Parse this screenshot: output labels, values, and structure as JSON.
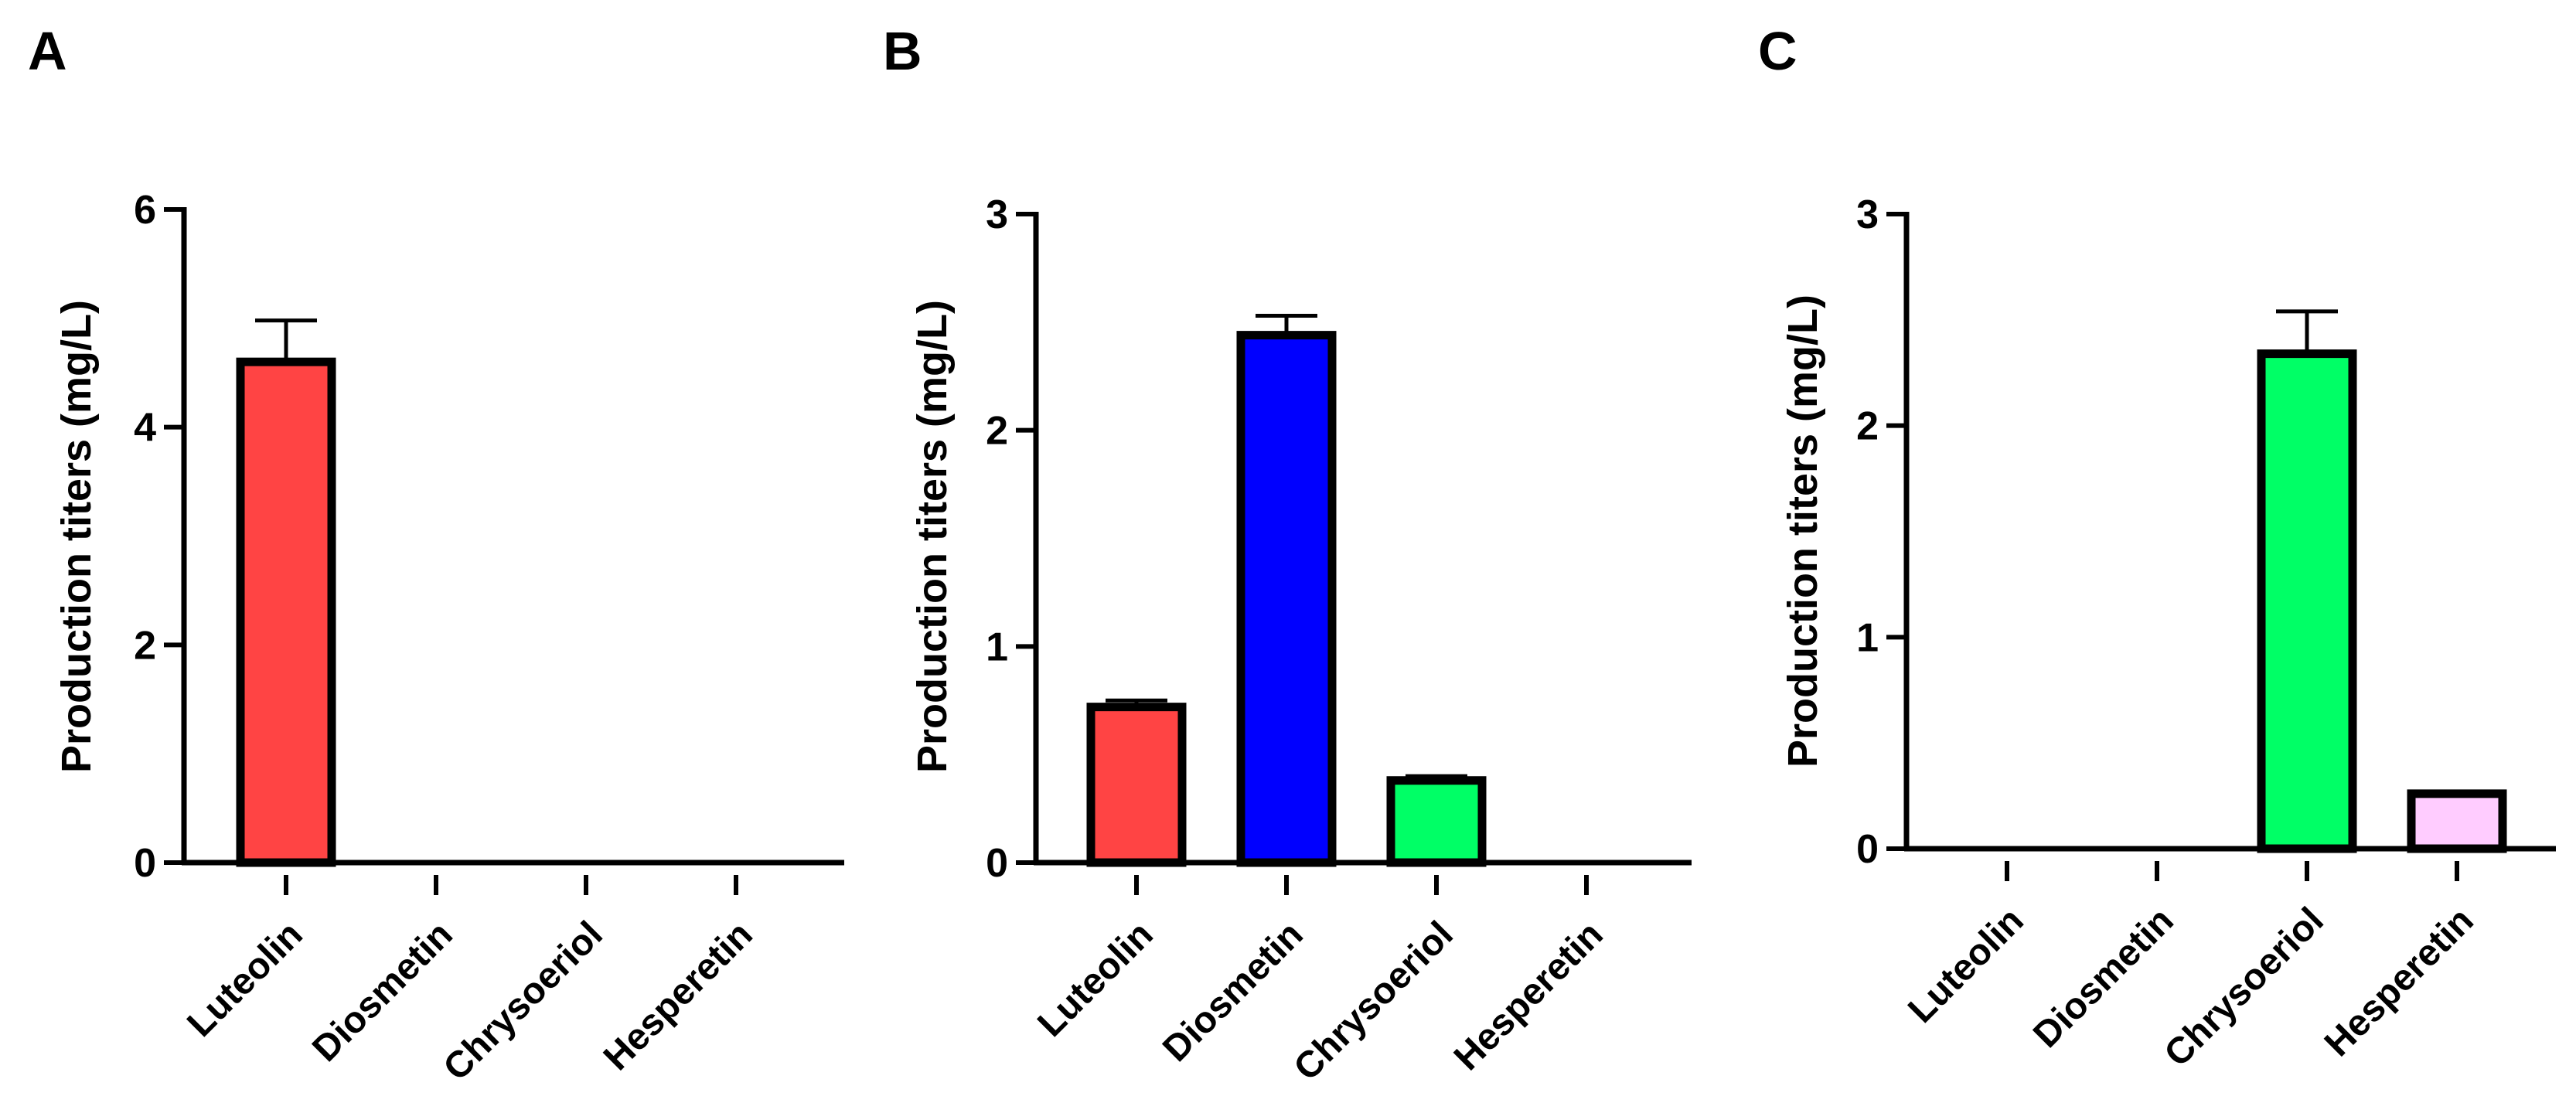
{
  "chart_data": [
    {
      "panel": "A",
      "type": "bar",
      "ylabel": "Production titers (mg/L)",
      "categories": [
        "Luteolin",
        "Diosmetin",
        "Chrysoeriol",
        "Hesperetin"
      ],
      "values": [
        4.6,
        0,
        0,
        0
      ],
      "errors": [
        0.38,
        0,
        0,
        0
      ],
      "colors": [
        "#ff4444",
        "#0000ff",
        "#00ff66",
        "#ffccff"
      ],
      "ylim": [
        0,
        6
      ],
      "yticks": [
        0,
        2,
        4,
        6
      ]
    },
    {
      "panel": "B",
      "type": "bar",
      "ylabel": "Production titers (mg/L)",
      "categories": [
        "Luteolin",
        "Diosmetin",
        "Chrysoeriol",
        "Hesperetin"
      ],
      "values": [
        0.72,
        2.44,
        0.38,
        0
      ],
      "errors": [
        0.03,
        0.09,
        0.02,
        0
      ],
      "colors": [
        "#ff4444",
        "#0000ff",
        "#00ff66",
        "#ffccff"
      ],
      "ylim": [
        0,
        3
      ],
      "yticks": [
        0,
        1,
        2,
        3
      ]
    },
    {
      "panel": "C",
      "type": "bar",
      "ylabel": "Production titers (mg/L)",
      "categories": [
        "Luteolin",
        "Diosmetin",
        "Chrysoeriol",
        "Hesperetin"
      ],
      "values": [
        0,
        0,
        2.34,
        0.26
      ],
      "errors": [
        0,
        0,
        0.2,
        0.01
      ],
      "colors": [
        "#ff4444",
        "#0000ff",
        "#00ff66",
        "#ffccff"
      ],
      "ylim": [
        0,
        3
      ],
      "yticks": [
        0,
        1,
        2,
        3
      ]
    }
  ]
}
